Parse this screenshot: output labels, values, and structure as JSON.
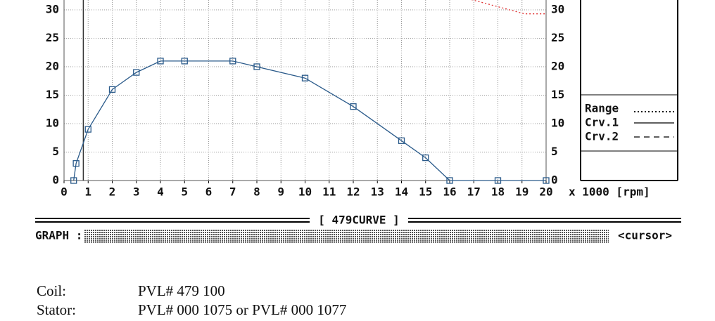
{
  "chart_data": {
    "type": "line",
    "title": "[ 479CURVE ]",
    "x_label": "x 1000 [rpm]",
    "graph_label": "GRAPH :",
    "cursor_label": "<cursor>",
    "cursor_x": 0.8,
    "xlim": [
      0,
      20
    ],
    "xticks": [
      0,
      1,
      2,
      3,
      4,
      5,
      6,
      7,
      8,
      9,
      10,
      11,
      12,
      13,
      14,
      15,
      16,
      17,
      18,
      19,
      20
    ],
    "ylim": [
      0,
      32
    ],
    "yticks": [
      0,
      5,
      10,
      15,
      20,
      25,
      30
    ],
    "grid": true,
    "series": [
      {
        "name": "Range",
        "color": "#e03030",
        "style": "dotted",
        "markers": false,
        "x": [
          16.9,
          19.1,
          20
        ],
        "values": [
          31.8,
          29.3,
          29.3
        ]
      },
      {
        "name": "Crv.1",
        "color": "#2a5a8a",
        "style": "solid",
        "markers": true,
        "x": [
          0.4,
          0.5,
          1,
          2,
          3,
          4,
          5,
          7,
          8,
          10,
          12,
          14,
          15,
          16,
          18,
          20
        ],
        "values": [
          0,
          3,
          9,
          16,
          19,
          21,
          21,
          21,
          20,
          18,
          13,
          7,
          4,
          0,
          0,
          0
        ]
      },
      {
        "name": "Crv.2",
        "color": "#000000",
        "style": "dashed",
        "markers": false,
        "x": [],
        "values": []
      }
    ]
  },
  "notes": [
    {
      "label": "Coil:",
      "value": "PVL# 479 100"
    },
    {
      "label": "Stator:",
      "value": "PVL# 000 1075 or PVL# 000 1077"
    }
  ]
}
